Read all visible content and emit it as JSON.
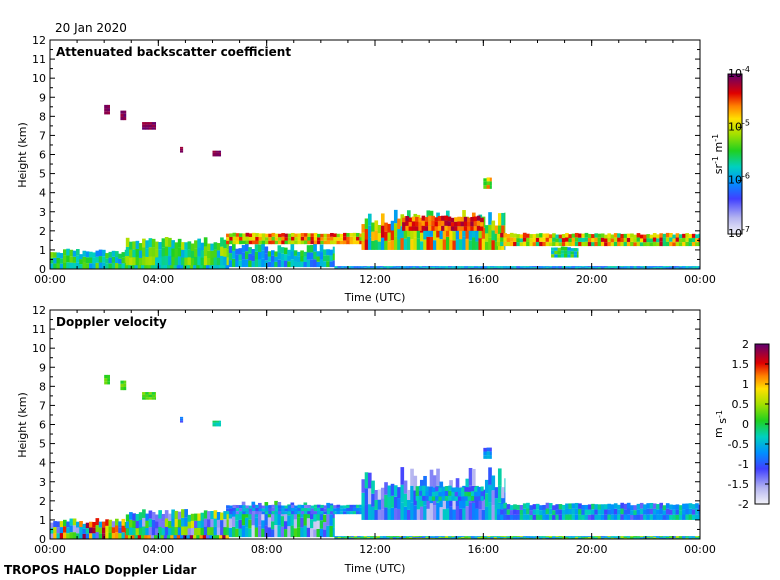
{
  "date_label": "20 Jan 2020",
  "footer": "TROPOS HALO Doppler Lidar",
  "chart_data": [
    {
      "type": "heatmap",
      "title": "Attenuated backscatter coefficient",
      "xlabel": "Time (UTC)",
      "ylabel": "Height (km)",
      "x_ticks": [
        "00:00",
        "04:00",
        "08:00",
        "12:00",
        "16:00",
        "20:00",
        "00:00"
      ],
      "x_range_hours": [
        0,
        24
      ],
      "y_ticks": [
        "0",
        "1",
        "2",
        "3",
        "4",
        "5",
        "6",
        "7",
        "8",
        "9",
        "10",
        "11",
        "12"
      ],
      "ylim": [
        0,
        12
      ],
      "colorbar": {
        "scale": "log",
        "range": [
          1e-07,
          0.0001
        ],
        "ticks": [
          {
            "base": "10",
            "exp": "-4",
            "value": 0.0001
          },
          {
            "base": "10",
            "exp": "-5",
            "value": 1e-05
          },
          {
            "base": "10",
            "exp": "-6",
            "value": 1e-06
          },
          {
            "base": "10",
            "exp": "-7",
            "value": 1e-07
          }
        ],
        "unit": {
          "a": "sr",
          "a_exp": "-1",
          "b": "m",
          "b_exp": "-1"
        }
      },
      "features": [
        {
          "t0": 0.0,
          "t1": 6.6,
          "h0": 0.0,
          "h1": 1.1,
          "level": 0.45,
          "vary": 0.15,
          "ceil_vary": 0.3
        },
        {
          "t0": 2.8,
          "t1": 6.6,
          "h0": 0.2,
          "h1": 1.7,
          "level": 0.5,
          "vary": 0.15,
          "ceil_vary": 0.25
        },
        {
          "t0": 6.6,
          "t1": 10.5,
          "h0": 0.1,
          "h1": 1.4,
          "level": 0.4,
          "vary": 0.15,
          "ceil_vary": 0.4
        },
        {
          "t0": 6.5,
          "t1": 11.8,
          "h0": 1.3,
          "h1": 1.9,
          "level": 0.72,
          "vary": 0.2,
          "ceil_vary": 0.1
        },
        {
          "t0": 11.5,
          "t1": 16.8,
          "h0": 1.0,
          "h1": 3.1,
          "level": 0.62,
          "vary": 0.3,
          "ceil_vary": 0.4
        },
        {
          "t0": 13.0,
          "t1": 16.0,
          "h0": 2.0,
          "h1": 2.8,
          "level": 0.85,
          "vary": 0.1,
          "ceil_vary": 0.15
        },
        {
          "t0": 16.5,
          "t1": 24.0,
          "h0": 1.2,
          "h1": 1.9,
          "level": 0.68,
          "vary": 0.25,
          "ceil_vary": 0.15
        },
        {
          "t0": 18.5,
          "t1": 19.5,
          "h0": 0.6,
          "h1": 1.2,
          "level": 0.45,
          "vary": 0.15,
          "ceil_vary": 0.2
        },
        {
          "t0": 16.0,
          "t1": 16.3,
          "h0": 4.2,
          "h1": 4.8,
          "level": 0.7,
          "vary": 0.2,
          "ceil_vary": 0.1
        },
        {
          "t0": 10.5,
          "t1": 24.0,
          "h0": 0.0,
          "h1": 0.15,
          "level": 0.35,
          "vary": 0.1,
          "ceil_vary": 0.0
        },
        {
          "t0": 2.0,
          "t1": 2.2,
          "h0": 8.1,
          "h1": 8.6,
          "level": 0.97,
          "vary": 0.03,
          "ceil_vary": 0.0
        },
        {
          "t0": 2.6,
          "t1": 2.8,
          "h0": 7.8,
          "h1": 8.3,
          "level": 0.97,
          "vary": 0.03,
          "ceil_vary": 0.0
        },
        {
          "t0": 3.4,
          "t1": 3.9,
          "h0": 7.3,
          "h1": 7.7,
          "level": 0.97,
          "vary": 0.03,
          "ceil_vary": 0.0
        },
        {
          "t0": 4.8,
          "t1": 4.9,
          "h0": 6.1,
          "h1": 6.4,
          "level": 0.97,
          "vary": 0.03,
          "ceil_vary": 0.0
        },
        {
          "t0": 6.0,
          "t1": 6.3,
          "h0": 5.9,
          "h1": 6.2,
          "level": 0.97,
          "vary": 0.03,
          "ceil_vary": 0.0
        }
      ]
    },
    {
      "type": "heatmap",
      "title": "Doppler velocity",
      "xlabel": "Time (UTC)",
      "ylabel": "Height (km)",
      "x_ticks": [
        "00:00",
        "04:00",
        "08:00",
        "12:00",
        "16:00",
        "20:00",
        "00:00"
      ],
      "x_range_hours": [
        0,
        24
      ],
      "y_ticks": [
        "0",
        "1",
        "2",
        "3",
        "4",
        "5",
        "6",
        "7",
        "8",
        "9",
        "10",
        "11",
        "12"
      ],
      "ylim": [
        0,
        12
      ],
      "colorbar": {
        "scale": "linear",
        "range": [
          -2,
          2
        ],
        "ticks": [
          {
            "label": "2",
            "value": 2
          },
          {
            "label": "1.5",
            "value": 1.5
          },
          {
            "label": "1",
            "value": 1
          },
          {
            "label": "0.5",
            "value": 0.5
          },
          {
            "label": "0",
            "value": 0
          },
          {
            "label": "-0.5",
            "value": -0.5
          },
          {
            "label": "-1",
            "value": -1
          },
          {
            "label": "-1.5",
            "value": -1.5
          },
          {
            "label": "-2",
            "value": -2
          }
        ],
        "unit": {
          "a": "m",
          "a_exp": "",
          "b": "s",
          "b_exp": "-1"
        }
      },
      "features": [
        {
          "t0": 0.0,
          "t1": 6.6,
          "h0": 0.0,
          "h1": 1.1,
          "level": 0.55,
          "vary": 0.45,
          "ceil_vary": 0.3
        },
        {
          "t0": 2.8,
          "t1": 6.6,
          "h0": 0.2,
          "h1": 1.6,
          "level": 0.4,
          "vary": 0.3,
          "ceil_vary": 0.25
        },
        {
          "t0": 6.6,
          "t1": 10.5,
          "h0": 0.1,
          "h1": 2.0,
          "level": 0.3,
          "vary": 0.25,
          "ceil_vary": 0.4
        },
        {
          "t0": 6.5,
          "t1": 11.8,
          "h0": 1.3,
          "h1": 1.8,
          "level": 0.3,
          "vary": 0.15,
          "ceil_vary": 0.1
        },
        {
          "t0": 11.5,
          "t1": 16.8,
          "h0": 1.0,
          "h1": 3.8,
          "level": 0.25,
          "vary": 0.2,
          "ceil_vary": 0.45
        },
        {
          "t0": 13.5,
          "t1": 16.0,
          "h0": 2.0,
          "h1": 2.8,
          "level": 0.35,
          "vary": 0.15,
          "ceil_vary": 0.15
        },
        {
          "t0": 16.5,
          "t1": 24.0,
          "h0": 1.0,
          "h1": 1.9,
          "level": 0.33,
          "vary": 0.15,
          "ceil_vary": 0.15
        },
        {
          "t0": 16.0,
          "t1": 16.3,
          "h0": 4.2,
          "h1": 4.8,
          "level": 0.3,
          "vary": 0.1,
          "ceil_vary": 0.1
        },
        {
          "t0": 10.5,
          "t1": 24.0,
          "h0": 0.0,
          "h1": 0.15,
          "level": 0.45,
          "vary": 0.2,
          "ceil_vary": 0.0
        },
        {
          "t0": 2.0,
          "t1": 2.2,
          "h0": 8.1,
          "h1": 8.6,
          "level": 0.55,
          "vary": 0.05,
          "ceil_vary": 0.0
        },
        {
          "t0": 2.6,
          "t1": 2.8,
          "h0": 7.8,
          "h1": 8.3,
          "level": 0.55,
          "vary": 0.05,
          "ceil_vary": 0.0
        },
        {
          "t0": 3.4,
          "t1": 3.9,
          "h0": 7.3,
          "h1": 7.7,
          "level": 0.55,
          "vary": 0.05,
          "ceil_vary": 0.0
        },
        {
          "t0": 4.8,
          "t1": 4.9,
          "h0": 6.1,
          "h1": 6.4,
          "level": 0.25,
          "vary": 0.05,
          "ceil_vary": 0.0
        },
        {
          "t0": 6.0,
          "t1": 6.3,
          "h0": 5.9,
          "h1": 6.2,
          "level": 0.45,
          "vary": 0.05,
          "ceil_vary": 0.0
        }
      ]
    }
  ]
}
